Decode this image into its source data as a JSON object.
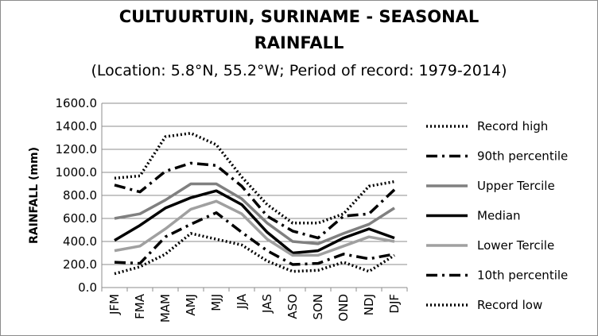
{
  "chart_data": {
    "type": "line",
    "title": "CULTUURTUIN, SURINAME - SEASONAL",
    "title_line2": "RAINFALL",
    "subtitle": "(Location: 5.8°N, 55.2°W; Period of record: 1979-2014)",
    "xlabel": "",
    "ylabel": "RAINFALL (mm)",
    "ylim": [
      0,
      1600
    ],
    "yticks": [
      "0.0",
      "200.0",
      "400.0",
      "600.0",
      "800.0",
      "1000.0",
      "1200.0",
      "1400.0",
      "1600.0"
    ],
    "grid": true,
    "legend_position": "right",
    "categories": [
      "JFM",
      "FMA",
      "MAM",
      "AMJ",
      "MJJ",
      "JJA",
      "JAS",
      "ASO",
      "SON",
      "OND",
      "NDJ",
      "DJF"
    ],
    "series": [
      {
        "name": "Record high",
        "color": "#000000",
        "style": "dotted",
        "values": [
          950,
          970,
          1310,
          1340,
          1240,
          960,
          720,
          560,
          560,
          640,
          880,
          920
        ]
      },
      {
        "name": "90th percentile",
        "color": "#000000",
        "style": "dashdot",
        "values": [
          890,
          830,
          1010,
          1080,
          1060,
          880,
          620,
          490,
          430,
          620,
          640,
          850
        ]
      },
      {
        "name": "Upper Tercile",
        "color": "#808080",
        "style": "solid",
        "values": [
          600,
          640,
          760,
          900,
          900,
          770,
          560,
          400,
          380,
          470,
          550,
          690
        ]
      },
      {
        "name": "Median",
        "color": "#000000",
        "style": "solid",
        "values": [
          410,
          540,
          690,
          780,
          840,
          720,
          480,
          300,
          320,
          430,
          510,
          430
        ]
      },
      {
        "name": "Lower Tercile",
        "color": "#a0a0a0",
        "style": "solid",
        "values": [
          320,
          360,
          510,
          680,
          750,
          640,
          420,
          280,
          280,
          360,
          440,
          400
        ]
      },
      {
        "name": "10th percentile",
        "color": "#000000",
        "style": "dashdot",
        "values": [
          220,
          210,
          440,
          550,
          650,
          480,
          320,
          200,
          210,
          290,
          250,
          290
        ]
      },
      {
        "name": "Record low",
        "color": "#000000",
        "style": "dotted",
        "values": [
          120,
          180,
          290,
          470,
          420,
          370,
          230,
          140,
          150,
          220,
          140,
          280
        ]
      }
    ]
  }
}
